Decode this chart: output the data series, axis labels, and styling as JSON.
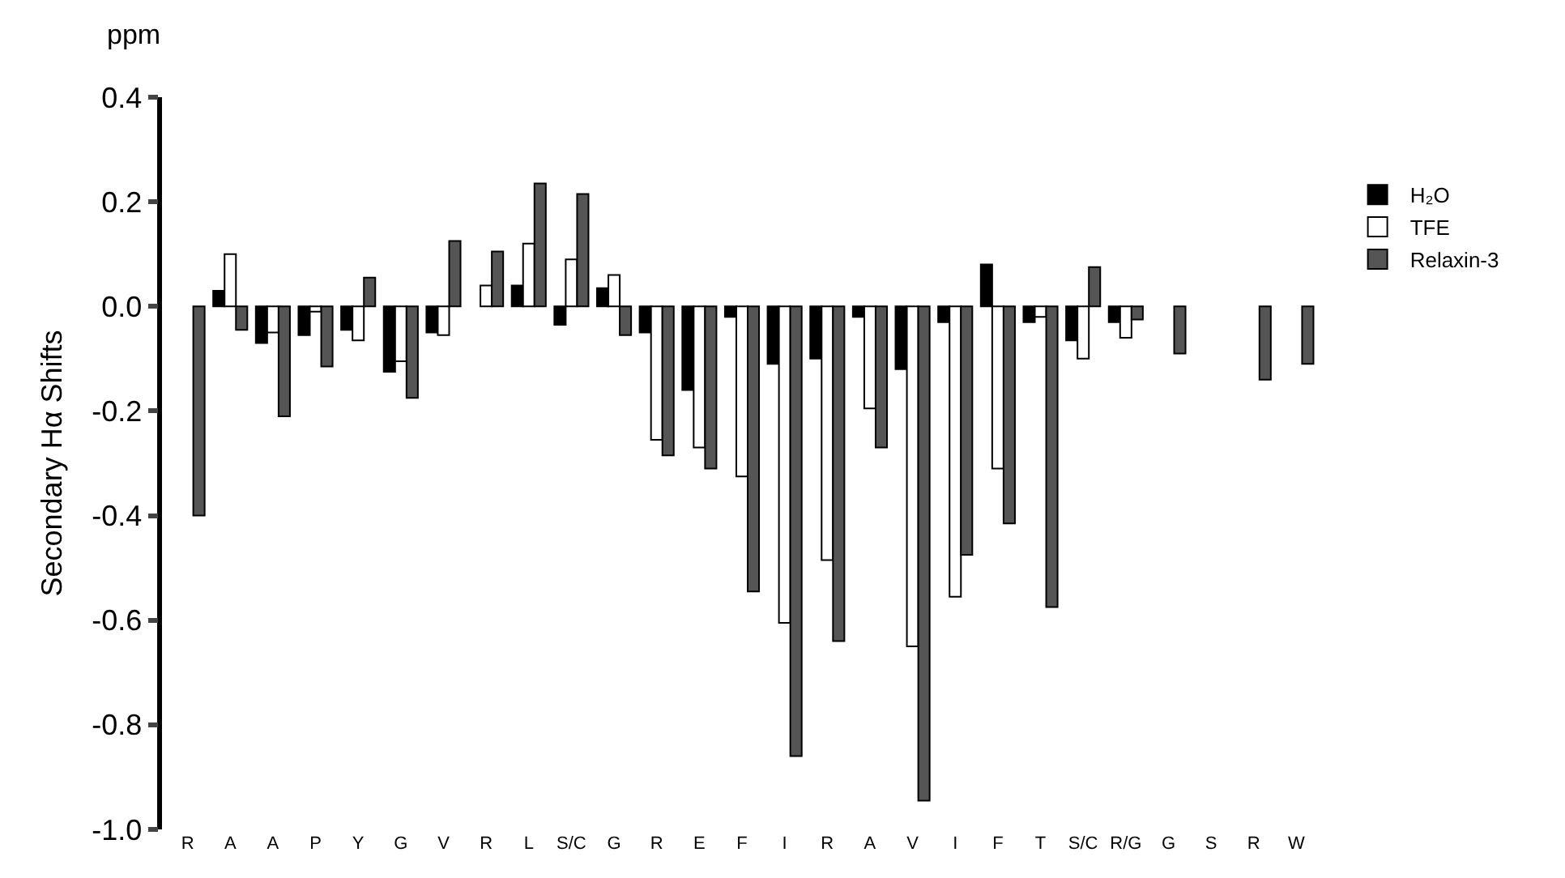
{
  "chart_data": {
    "type": "bar",
    "ylabel": "Secondary Hα Shifts",
    "annotations": [
      "ppm"
    ],
    "categories": [
      "R",
      "A",
      "A",
      "P",
      "Y",
      "G",
      "V",
      "R",
      "L",
      "S/C",
      "G",
      "R",
      "E",
      "F",
      "I",
      "R",
      "A",
      "V",
      "I",
      "F",
      "T",
      "S/C",
      "R/G",
      "G",
      "S",
      "R",
      "W"
    ],
    "series": [
      {
        "name": "H₂O",
        "color": "#000000",
        "values": [
          null,
          0.03,
          -0.07,
          -0.055,
          -0.045,
          -0.125,
          -0.05,
          null,
          0.04,
          -0.035,
          0.035,
          -0.05,
          -0.16,
          -0.02,
          -0.11,
          -0.1,
          -0.02,
          -0.12,
          -0.03,
          0.08,
          -0.03,
          -0.065,
          -0.03,
          null,
          null,
          null,
          null
        ]
      },
      {
        "name": "TFE",
        "color": "#ffffff",
        "values": [
          null,
          0.1,
          -0.05,
          -0.01,
          -0.065,
          -0.105,
          -0.055,
          0.04,
          0.12,
          0.09,
          0.06,
          -0.255,
          -0.27,
          -0.325,
          -0.605,
          -0.485,
          -0.195,
          -0.65,
          -0.555,
          -0.31,
          -0.02,
          -0.1,
          -0.06,
          null,
          null,
          null,
          null
        ]
      },
      {
        "name": "Relaxin-3",
        "color": "#555555",
        "values": [
          -0.4,
          -0.045,
          -0.21,
          -0.115,
          0.055,
          -0.175,
          0.125,
          0.105,
          0.235,
          0.215,
          -0.055,
          -0.285,
          -0.31,
          -0.545,
          -0.86,
          -0.64,
          -0.27,
          -0.945,
          -0.475,
          -0.415,
          -0.575,
          0.075,
          -0.025,
          -0.09,
          null,
          -0.14,
          -0.11
        ]
      }
    ],
    "ylim": [
      -1.0,
      0.4
    ],
    "yticks": [
      {
        "value": -1.0,
        "label": "-1.0"
      },
      -0.8,
      -0.6,
      -0.4,
      -0.2,
      {
        "value": 0,
        "label": "0.0"
      },
      0.2,
      0.4
    ],
    "grid": false,
    "legend": "top right"
  }
}
